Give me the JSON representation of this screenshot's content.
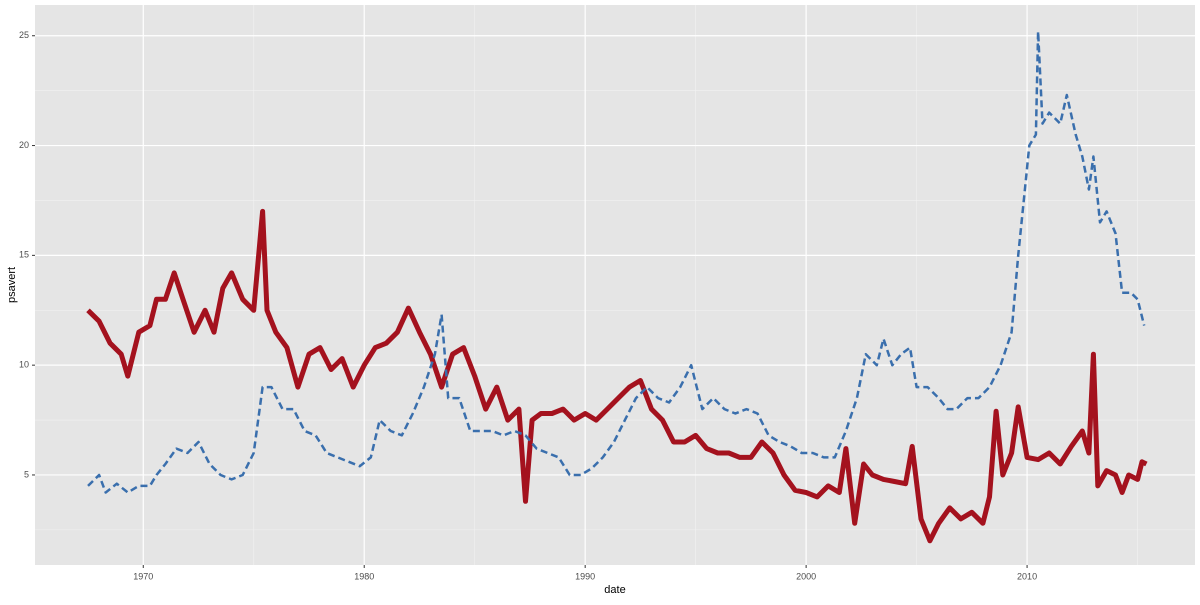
{
  "chart_data": {
    "type": "line",
    "x_label": "date",
    "y_label": "psavert",
    "xlim": [
      1965.1,
      2017.6
    ],
    "ylim": [
      0.9,
      26.4
    ],
    "xticks": [
      1970,
      1980,
      1990,
      2000,
      2010
    ],
    "yticks": [
      5,
      10,
      15,
      20,
      25
    ],
    "grid": true,
    "minor_grid": true,
    "series": [
      {
        "color": "#a4121e",
        "line_style": "solid",
        "x": [
          1967.5,
          1968,
          1968.5,
          1969,
          1969.3,
          1969.8,
          1970.3,
          1970.6,
          1971,
          1971.4,
          1971.8,
          1972.3,
          1972.8,
          1973.2,
          1973.6,
          1974,
          1974.5,
          1975,
          1975.4,
          1975.6,
          1976,
          1976.5,
          1977,
          1977.5,
          1978,
          1978.5,
          1979,
          1979.5,
          1980,
          1980.5,
          1981,
          1981.5,
          1982,
          1982.5,
          1983,
          1983.5,
          1984,
          1984.5,
          1985,
          1985.5,
          1986,
          1986.5,
          1987,
          1987.3,
          1987.6,
          1988,
          1988.5,
          1989,
          1989.5,
          1990,
          1990.5,
          1991,
          1991.5,
          1992,
          1992.5,
          1993,
          1993.5,
          1994,
          1994.5,
          1995,
          1995.5,
          1996,
          1996.5,
          1997,
          1997.5,
          1998,
          1998.5,
          1999,
          1999.5,
          2000,
          2000.5,
          2001,
          2001.5,
          2001.8,
          2002.2,
          2002.6,
          2003,
          2003.5,
          2004,
          2004.5,
          2004.8,
          2005.2,
          2005.6,
          2006,
          2006.5,
          2007,
          2007.5,
          2008,
          2008.3,
          2008.6,
          2008.9,
          2009.3,
          2009.6,
          2010,
          2010.5,
          2011,
          2011.5,
          2012,
          2012.5,
          2012.8,
          2013,
          2013.2,
          2013.6,
          2014,
          2014.3,
          2014.6,
          2015,
          2015.2,
          2015.4
        ],
        "values": [
          12.5,
          12.0,
          11.0,
          10.5,
          9.5,
          11.5,
          11.8,
          13.0,
          13.0,
          14.2,
          13.0,
          11.5,
          12.5,
          11.5,
          13.5,
          14.2,
          13.0,
          12.5,
          17.0,
          12.5,
          11.5,
          10.8,
          9.0,
          10.5,
          10.8,
          9.8,
          10.3,
          9.0,
          10.0,
          10.8,
          11.0,
          11.5,
          12.6,
          11.5,
          10.5,
          9.0,
          10.5,
          10.8,
          9.5,
          8.0,
          9.0,
          7.5,
          8.0,
          3.8,
          7.5,
          7.8,
          7.8,
          8.0,
          7.5,
          7.8,
          7.5,
          8.0,
          8.5,
          9.0,
          9.3,
          8.0,
          7.5,
          6.5,
          6.5,
          6.8,
          6.2,
          6.0,
          6.0,
          5.8,
          5.8,
          6.5,
          6.0,
          5.0,
          4.3,
          4.2,
          4.0,
          4.5,
          4.2,
          6.2,
          2.8,
          5.5,
          5.0,
          4.8,
          4.7,
          4.6,
          6.3,
          3.0,
          2.0,
          2.8,
          3.5,
          3.0,
          3.3,
          2.8,
          4.0,
          7.9,
          5.0,
          6.0,
          8.1,
          5.8,
          5.7,
          6.0,
          5.5,
          6.3,
          7.0,
          6.0,
          10.5,
          4.5,
          5.2,
          5.0,
          4.2,
          5.0,
          4.8,
          5.6,
          5.5
        ]
      },
      {
        "color": "#3a6fad",
        "line_style": "dashed",
        "x": [
          1967.5,
          1968,
          1968.3,
          1968.8,
          1969.3,
          1969.8,
          1970.3,
          1970.6,
          1971,
          1971.5,
          1972,
          1972.5,
          1973,
          1973.5,
          1974,
          1974.5,
          1975,
          1975.4,
          1975.8,
          1976.3,
          1976.8,
          1977.3,
          1977.8,
          1978.3,
          1978.8,
          1979.3,
          1979.8,
          1980.3,
          1980.7,
          1981.2,
          1981.7,
          1982.2,
          1982.7,
          1983.2,
          1983.5,
          1983.8,
          1984.3,
          1984.8,
          1985.3,
          1985.8,
          1986.3,
          1986.8,
          1987.3,
          1987.8,
          1988.3,
          1988.8,
          1989.3,
          1989.8,
          1990.3,
          1990.8,
          1991.3,
          1991.8,
          1992.3,
          1992.8,
          1993.3,
          1993.8,
          1994.3,
          1994.8,
          1995.3,
          1995.8,
          1996.3,
          1996.8,
          1997.3,
          1997.8,
          1998.3,
          1998.8,
          1999.3,
          1999.8,
          2000.3,
          2000.8,
          2001.3,
          2001.8,
          2002.3,
          2002.7,
          2003.2,
          2003.5,
          2003.9,
          2004.3,
          2004.7,
          2005,
          2005.5,
          2006,
          2006.4,
          2006.8,
          2007.3,
          2007.8,
          2008.3,
          2008.8,
          2009.3,
          2009.6,
          2009.9,
          2010.1,
          2010.4,
          2010.5,
          2010.7,
          2011,
          2011.5,
          2011.8,
          2012.2,
          2012.5,
          2012.8,
          2013,
          2013.3,
          2013.6,
          2014,
          2014.3,
          2014.7,
          2015,
          2015.3
        ],
        "values": [
          4.5,
          5.0,
          4.2,
          4.6,
          4.2,
          4.5,
          4.5,
          5.0,
          5.5,
          6.2,
          6.0,
          6.5,
          5.5,
          5.0,
          4.8,
          5.0,
          6.0,
          9.0,
          9.0,
          8.0,
          8.0,
          7.0,
          6.8,
          6.0,
          5.8,
          5.6,
          5.4,
          5.8,
          7.5,
          7.0,
          6.8,
          7.8,
          9.0,
          10.5,
          12.3,
          8.5,
          8.5,
          7.0,
          7.0,
          7.0,
          6.8,
          7.0,
          6.8,
          6.2,
          6.0,
          5.8,
          5.0,
          5.0,
          5.3,
          5.8,
          6.5,
          7.5,
          8.5,
          9.0,
          8.5,
          8.3,
          9.0,
          10.0,
          8.0,
          8.5,
          8.0,
          7.8,
          8.0,
          7.8,
          6.8,
          6.5,
          6.3,
          6.0,
          6.0,
          5.8,
          5.8,
          7.0,
          8.5,
          10.5,
          10.0,
          11.2,
          10.0,
          10.5,
          10.8,
          9.0,
          9.0,
          8.5,
          8.0,
          8.0,
          8.5,
          8.5,
          9.0,
          10.0,
          11.5,
          15.0,
          18.0,
          20.0,
          20.5,
          25.2,
          21.0,
          21.5,
          21.0,
          22.3,
          20.5,
          19.5,
          18.0,
          19.5,
          16.5,
          17.0,
          16.0,
          13.3,
          13.3,
          13.0,
          11.8
        ]
      }
    ]
  }
}
